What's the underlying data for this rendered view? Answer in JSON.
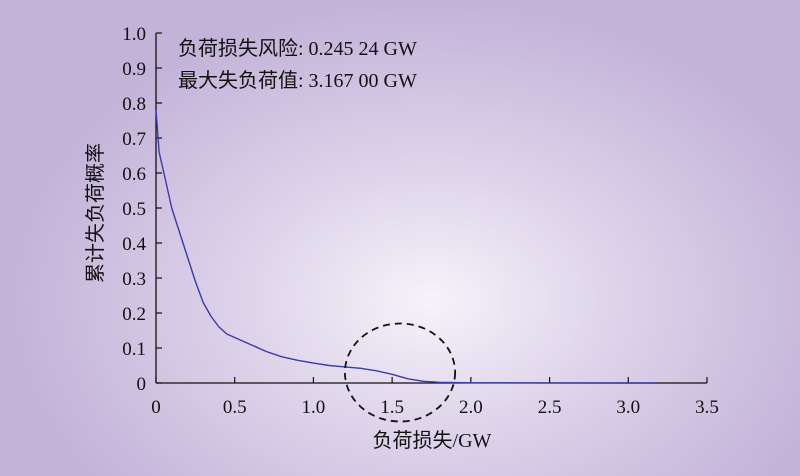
{
  "chart_data": {
    "type": "line",
    "xlabel": "负荷损失/GW",
    "ylabel": "累计失负荷概率",
    "xlim": [
      0,
      3.5
    ],
    "ylim": [
      0,
      1.0
    ],
    "x_ticks": [
      "0",
      "0.5",
      "1.0",
      "1.5",
      "2.0",
      "2.5",
      "3.0",
      "3.5"
    ],
    "y_ticks": [
      "0",
      "0.1",
      "0.2",
      "0.3",
      "0.4",
      "0.5",
      "0.6",
      "0.7",
      "0.8",
      "0.9",
      "1.0"
    ],
    "annotations": [
      "负荷损失风险: 0.245 24 GW",
      "最大失负荷值: 3.167 00 GW"
    ],
    "highlight_ellipse": {
      "center": [
        1.55,
        0.03
      ],
      "radii": [
        0.35,
        0.14
      ]
    },
    "series": [
      {
        "color": "#3a3aa8",
        "x": [
          0,
          0.02,
          0.05,
          0.08,
          0.1,
          0.15,
          0.2,
          0.25,
          0.3,
          0.35,
          0.4,
          0.45,
          0.5,
          0.6,
          0.7,
          0.8,
          0.9,
          1.0,
          1.1,
          1.2,
          1.3,
          1.4,
          1.5,
          1.6,
          1.7,
          1.8,
          1.9,
          2.0,
          2.5,
          3.0,
          3.167
        ],
        "y": [
          0.78,
          0.66,
          0.6,
          0.54,
          0.5,
          0.43,
          0.36,
          0.29,
          0.23,
          0.19,
          0.16,
          0.14,
          0.13,
          0.11,
          0.09,
          0.075,
          0.065,
          0.057,
          0.05,
          0.046,
          0.042,
          0.035,
          0.025,
          0.012,
          0.005,
          0.002,
          0.001,
          0.0005,
          0.0002,
          0.0001,
          0
        ]
      }
    ]
  }
}
